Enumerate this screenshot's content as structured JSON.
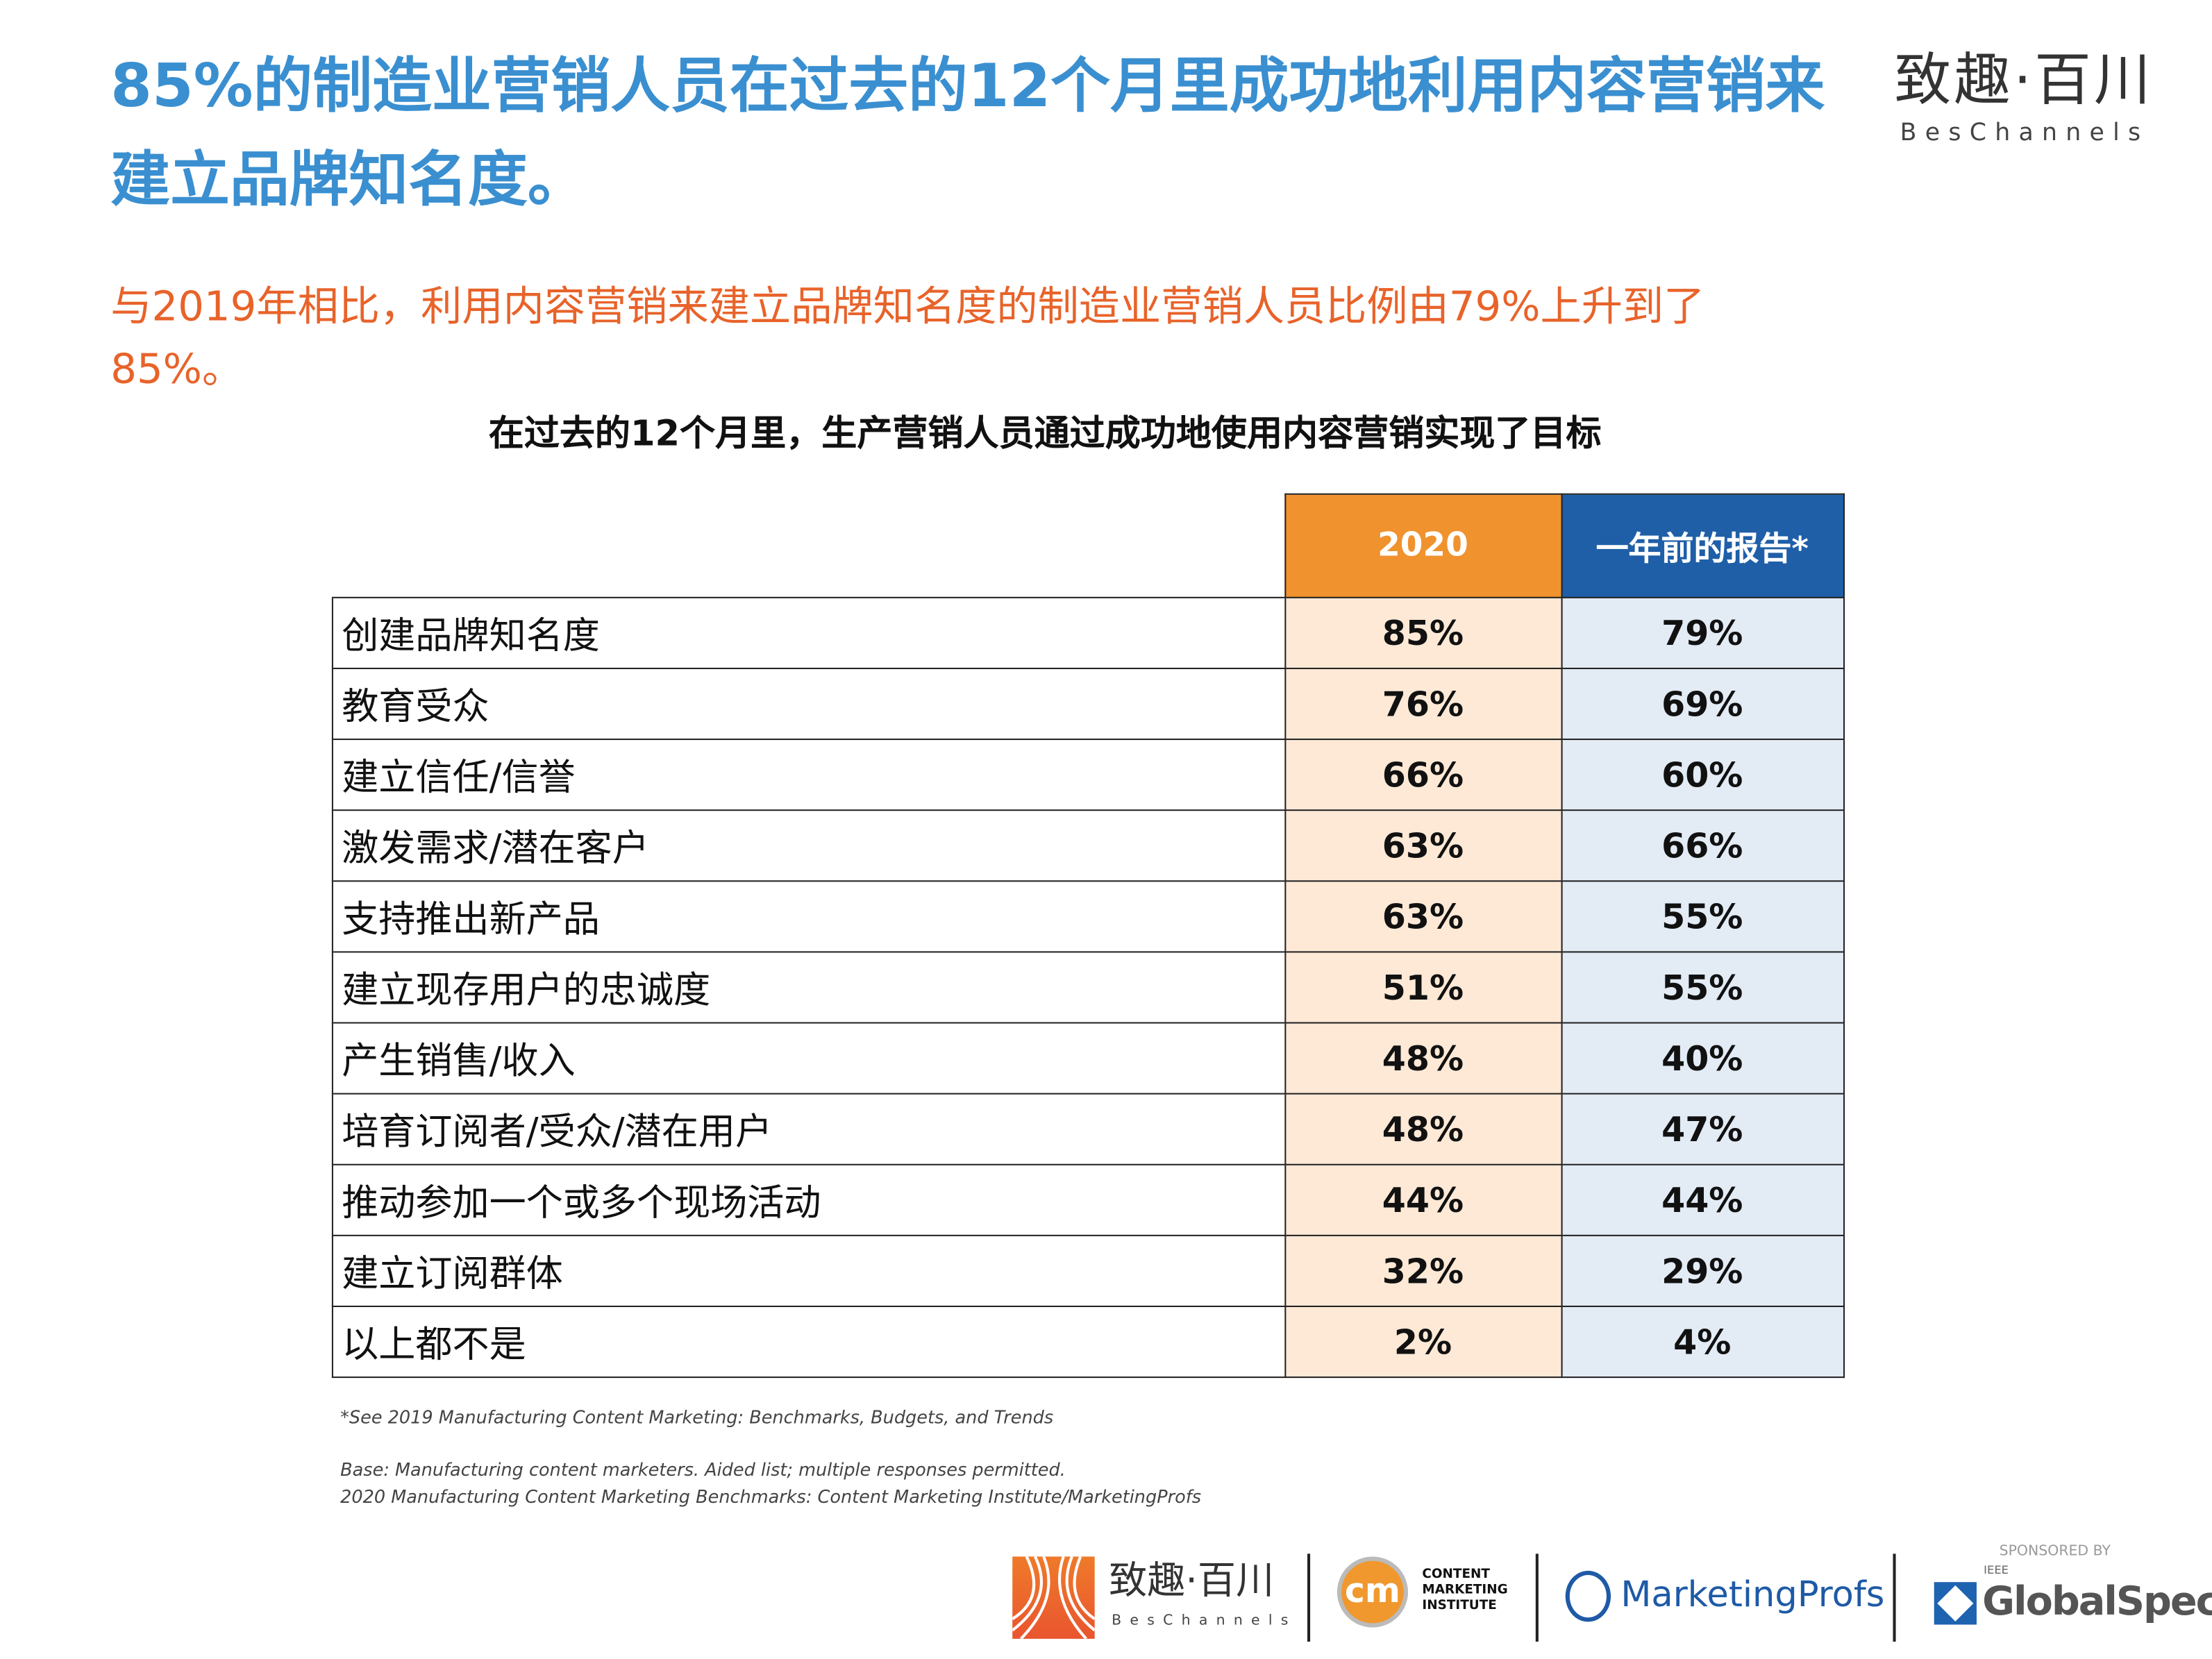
{
  "header": {
    "title": "85%的制造业营销人员在过去的12个月里成功地利用内容营销来建立品牌知名度。",
    "logo_cn": "致趣·百川",
    "logo_en": "BesChannels"
  },
  "subtitle": "与2019年相比，利用内容营销来建立品牌知名度的制造业营销人员比例由79%上升到了85%。",
  "table": {
    "title": "在过去的12个月里，生产营销人员通过成功地使用内容营销实现了目标",
    "columns": [
      "2020",
      "一年前的报告*"
    ],
    "rows": [
      {
        "label": "创建品牌知名度",
        "v2020": "85%",
        "prior": "79%"
      },
      {
        "label": "教育受众",
        "v2020": "76%",
        "prior": "69%"
      },
      {
        "label": "建立信任/信誉",
        "v2020": "66%",
        "prior": "60%"
      },
      {
        "label": "激发需求/潜在客户",
        "v2020": "63%",
        "prior": "66%"
      },
      {
        "label": "支持推出新产品",
        "v2020": "63%",
        "prior": "55%"
      },
      {
        "label": "建立现存用户的忠诚度",
        "v2020": "51%",
        "prior": "55%"
      },
      {
        "label": "产生销售/收入",
        "v2020": "48%",
        "prior": "40%"
      },
      {
        "label": "培育订阅者/受众/潜在用户",
        "v2020": "48%",
        "prior": "47%"
      },
      {
        "label": "推动参加一个或多个现场活动",
        "v2020": "44%",
        "prior": "44%"
      },
      {
        "label": "建立订阅群体",
        "v2020": "32%",
        "prior": "29%"
      },
      {
        "label": "以上都不是",
        "v2020": "2%",
        "prior": "4%"
      }
    ],
    "colors": {
      "col2020_header": "#f0922e",
      "prior_header": "#1f5fa8",
      "col2020_cell": "#fde9d6",
      "prior_cell": "#e3ebf5"
    }
  },
  "notes": {
    "footnote": "*See 2019 Manufacturing Content Marketing: Benchmarks, Budgets, and Trends",
    "base": "Base: Manufacturing content marketers. Aided list; multiple responses permitted.",
    "source": "2020 Manufacturing Content Marketing Benchmarks: Content Marketing Institute/MarketingProfs"
  },
  "footer": {
    "beschannels_cn": "致趣·百川",
    "beschannels_en": "BesChannels",
    "cmi_mark": "cm",
    "cmi_text": [
      "CONTENT",
      "MARKETING",
      "INSTITUTE"
    ],
    "marketingprofs": "MarketingProfs",
    "sponsored_by": "SPONSORED BY",
    "ieee": "IEEE",
    "globalspec": "GlobalSpec"
  }
}
